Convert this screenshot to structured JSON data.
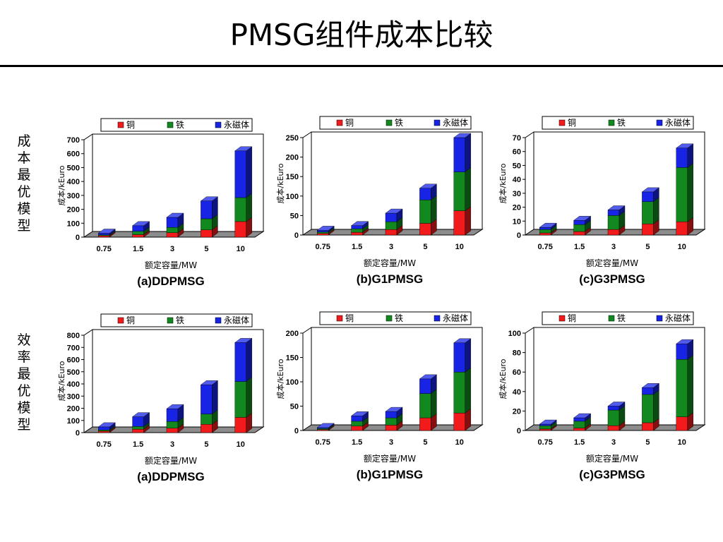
{
  "title": "PMSG组件成本比较",
  "row_labels": [
    "成本最优模型",
    "效率最优模型"
  ],
  "colors": {
    "copper": "#f21a1a",
    "iron": "#12891f",
    "magnet": "#1724e6",
    "floor": "#8c8c8c",
    "axis": "#000000"
  },
  "chart_data": [
    {
      "type": "bar",
      "stacked": true,
      "title": "(a)DDPMSG",
      "xlabel": "额定容量/MW",
      "ylabel": "成本/kEuro",
      "categories": [
        "0.75",
        "1.5",
        "3",
        "5",
        "10"
      ],
      "ylim": [
        0,
        700
      ],
      "yticks": [
        0,
        100,
        200,
        300,
        400,
        500,
        600,
        700
      ],
      "legend": "top",
      "series": [
        {
          "name": "铜",
          "values": [
            10,
            18,
            32,
            52,
            112
          ]
        },
        {
          "name": "铁",
          "values": [
            6,
            24,
            38,
            80,
            172
          ]
        },
        {
          "name": "永磁体",
          "values": [
            12,
            40,
            72,
            128,
            336
          ]
        }
      ]
    },
    {
      "type": "bar",
      "stacked": true,
      "title": "(b)G1PMSG",
      "xlabel": "额定容量/MW",
      "ylabel": "成本/kEuro",
      "categories": [
        "0.75",
        "1.5",
        "3",
        "5",
        "10"
      ],
      "ylim": [
        0,
        250
      ],
      "yticks": [
        0,
        50,
        100,
        150,
        200,
        250
      ],
      "legend": "top",
      "series": [
        {
          "name": "铜",
          "values": [
            4,
            7,
            14,
            30,
            62
          ]
        },
        {
          "name": "铁",
          "values": [
            4,
            9,
            20,
            60,
            100
          ]
        },
        {
          "name": "永磁体",
          "values": [
            4,
            8,
            22,
            30,
            88
          ]
        }
      ]
    },
    {
      "type": "bar",
      "stacked": true,
      "title": "(c)G3PMSG",
      "xlabel": "额定容量/MW",
      "ylabel": "成本/kEuro",
      "categories": [
        "0.75",
        "1.5",
        "3",
        "5",
        "10"
      ],
      "ylim": [
        0,
        70
      ],
      "yticks": [
        0,
        10,
        20,
        30,
        40,
        50,
        60,
        70
      ],
      "legend": "top",
      "series": [
        {
          "name": "铜",
          "values": [
            1.5,
            2.5,
            4,
            8,
            9.5
          ]
        },
        {
          "name": "铁",
          "values": [
            2.5,
            5,
            10,
            16,
            39
          ]
        },
        {
          "name": "永磁体",
          "values": [
            1.5,
            3,
            4,
            7,
            14
          ]
        }
      ]
    },
    {
      "type": "bar",
      "stacked": true,
      "title": "(a)DDPMSG",
      "xlabel": "额定容量/MW",
      "ylabel": "成本/kEuro",
      "categories": [
        "0.75",
        "1.5",
        "3",
        "5",
        "10"
      ],
      "ylim": [
        0,
        800
      ],
      "yticks": [
        0,
        100,
        200,
        300,
        400,
        500,
        600,
        700,
        800
      ],
      "legend": "top",
      "series": [
        {
          "name": "铜",
          "values": [
            12,
            28,
            36,
            68,
            125
          ]
        },
        {
          "name": "铁",
          "values": [
            10,
            22,
            55,
            85,
            295
          ]
        },
        {
          "name": "永磁体",
          "values": [
            25,
            80,
            105,
            240,
            320
          ]
        }
      ]
    },
    {
      "type": "bar",
      "stacked": true,
      "title": "(b)G1PMSG",
      "xlabel": "额定容量/MW",
      "ylabel": "成本/kEuro",
      "categories": [
        "0.75",
        "1.5",
        "3",
        "5",
        "10"
      ],
      "ylim": [
        0,
        200
      ],
      "yticks": [
        0,
        50,
        100,
        150,
        200
      ],
      "legend": "top",
      "series": [
        {
          "name": "铜",
          "values": [
            2,
            9,
            11,
            26,
            36
          ]
        },
        {
          "name": "铁",
          "values": [
            2,
            10,
            15,
            50,
            84
          ]
        },
        {
          "name": "永磁体",
          "values": [
            2,
            11,
            13,
            30,
            60
          ]
        }
      ]
    },
    {
      "type": "bar",
      "stacked": true,
      "title": "(c)G3PMSG",
      "xlabel": "额定容量/MW",
      "ylabel": "成本/kEuro",
      "categories": [
        "0.75",
        "1.5",
        "3",
        "5",
        "10"
      ],
      "ylim": [
        0,
        100
      ],
      "yticks": [
        0,
        20,
        40,
        60,
        80,
        100
      ],
      "legend": "top",
      "series": [
        {
          "name": "铜",
          "values": [
            1.5,
            2.5,
            5,
            8,
            14
          ]
        },
        {
          "name": "铁",
          "values": [
            3.5,
            7,
            16,
            29,
            59
          ]
        },
        {
          "name": "永磁体",
          "values": [
            1.5,
            3.5,
            4,
            7,
            16
          ]
        }
      ]
    }
  ]
}
